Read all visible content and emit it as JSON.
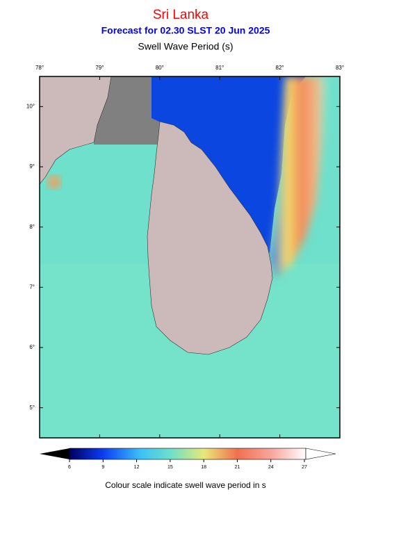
{
  "header": {
    "title": "Sri Lanka",
    "subtitle": "Forecast for  02.30 SLST 20 Jun 2025",
    "variable": "Swell Wave Period (s)"
  },
  "map": {
    "lon_ticks": [
      {
        "value": 78,
        "label": "78°"
      },
      {
        "value": 79,
        "label": "79°"
      },
      {
        "value": 80,
        "label": "80°"
      },
      {
        "value": 81,
        "label": "81°"
      },
      {
        "value": 82,
        "label": "82°"
      },
      {
        "value": 83,
        "label": "83°"
      }
    ],
    "lat_ticks": [
      {
        "value": 10,
        "label": "10°"
      },
      {
        "value": 9,
        "label": "9°"
      },
      {
        "value": 8,
        "label": "8°"
      },
      {
        "value": 7,
        "label": "7°"
      },
      {
        "value": 6,
        "label": "6°"
      },
      {
        "value": 5,
        "label": "5°"
      }
    ]
  },
  "colorbar": {
    "ticks": [
      6,
      9,
      12,
      15,
      18,
      21,
      24,
      27
    ],
    "caption": "Colour scale indicate swell wave period in s"
  }
}
